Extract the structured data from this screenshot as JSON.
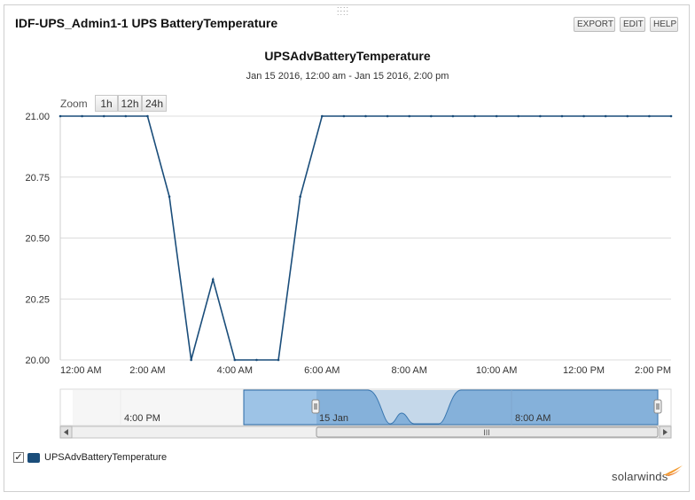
{
  "resource": {
    "title": "IDF-UPS_Admin1-1 UPS BatteryTemperature",
    "buttons": {
      "export": "EXPORT",
      "edit": "EDIT",
      "help": "HELP"
    }
  },
  "zoom": {
    "label": "Zoom",
    "options": [
      "1h",
      "12h",
      "24h"
    ]
  },
  "navigator": {
    "labels": [
      "4:00 PM",
      "15 Jan",
      "8:00 AM"
    ],
    "scroll_thumb": "III"
  },
  "legend": {
    "label": "UPSAdvBatteryTemperature",
    "checked": "✓"
  },
  "brand": {
    "name": "solarwinds"
  },
  "colors": {
    "line": "#1a4d7a",
    "navigator_fill": "#9dc3e6",
    "grid": "#dcdcdc"
  },
  "chart_data": {
    "type": "line",
    "title": "UPSAdvBatteryTemperature",
    "subtitle": "Jan 15 2016, 12:00 am - Jan 15 2016, 2:00 pm",
    "x_ticks": [
      "12:00 AM",
      "2:00 AM",
      "4:00 AM",
      "6:00 AM",
      "8:00 AM",
      "10:00 AM",
      "12:00 PM",
      "2:00 PM"
    ],
    "y_ticks": [
      "20.00",
      "20.25",
      "20.50",
      "20.75",
      "21.00"
    ],
    "xlim": [
      0,
      14
    ],
    "ylim": [
      20.0,
      21.0
    ],
    "grid": true,
    "series": [
      {
        "x": [
          0,
          0.5,
          1,
          1.5,
          2,
          2.5,
          3,
          3.5,
          4,
          4.5,
          5,
          5.5,
          6,
          6.5,
          7,
          7.5,
          8,
          8.5,
          9,
          9.5,
          10,
          10.5,
          11,
          11.5,
          12,
          12.5,
          13,
          13.5,
          14
        ],
        "y": [
          21,
          21,
          21,
          21,
          21,
          20.67,
          20,
          20.33,
          20,
          20,
          20,
          20.67,
          21,
          21,
          21,
          21,
          21,
          21,
          21,
          21,
          21,
          21,
          21,
          21,
          21,
          21,
          21,
          21,
          21
        ]
      }
    ]
  }
}
